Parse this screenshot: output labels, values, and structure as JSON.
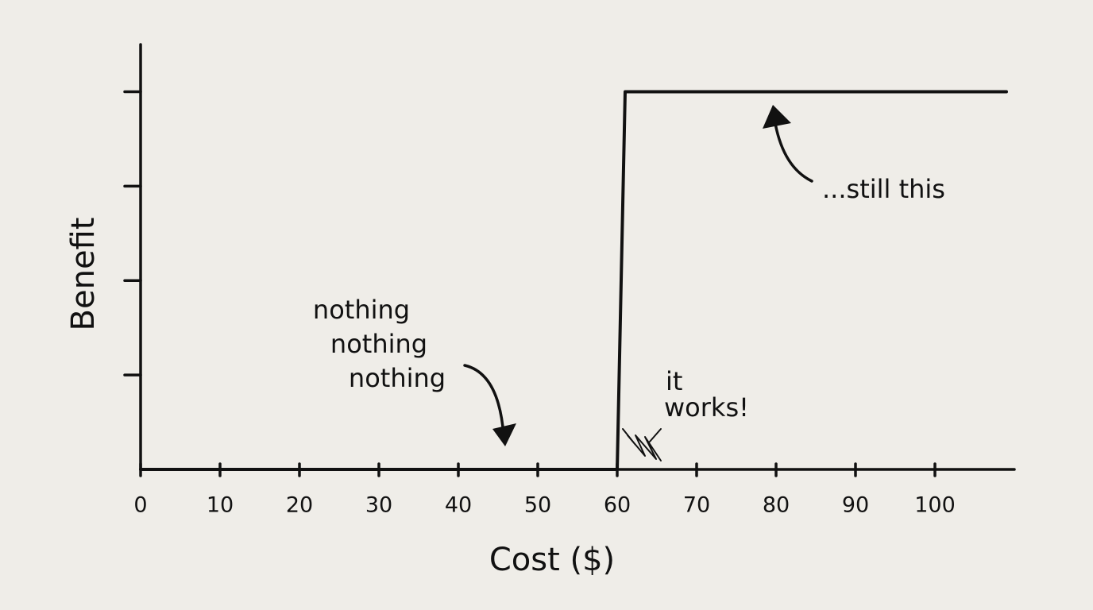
{
  "chart_data": {
    "type": "line",
    "x_label": "Cost ($)",
    "y_label": "Benefit",
    "x": [
      0,
      60,
      61,
      109
    ],
    "series": [
      {
        "color": "#111111",
        "values": [
          0,
          0,
          4,
          4
        ]
      }
    ],
    "xlim": [
      0,
      110
    ],
    "ylim": [
      0,
      4.5
    ],
    "xticks": [
      0,
      10,
      20,
      30,
      40,
      50,
      60,
      70,
      80,
      90,
      100
    ],
    "yticks": [
      1,
      2,
      3,
      4
    ],
    "annotations": [
      {
        "lines": [
          "nothing",
          "nothing",
          "nothing"
        ]
      },
      {
        "lines": [
          "it",
          "works!"
        ]
      },
      {
        "lines": [
          "...still this"
        ]
      }
    ]
  }
}
